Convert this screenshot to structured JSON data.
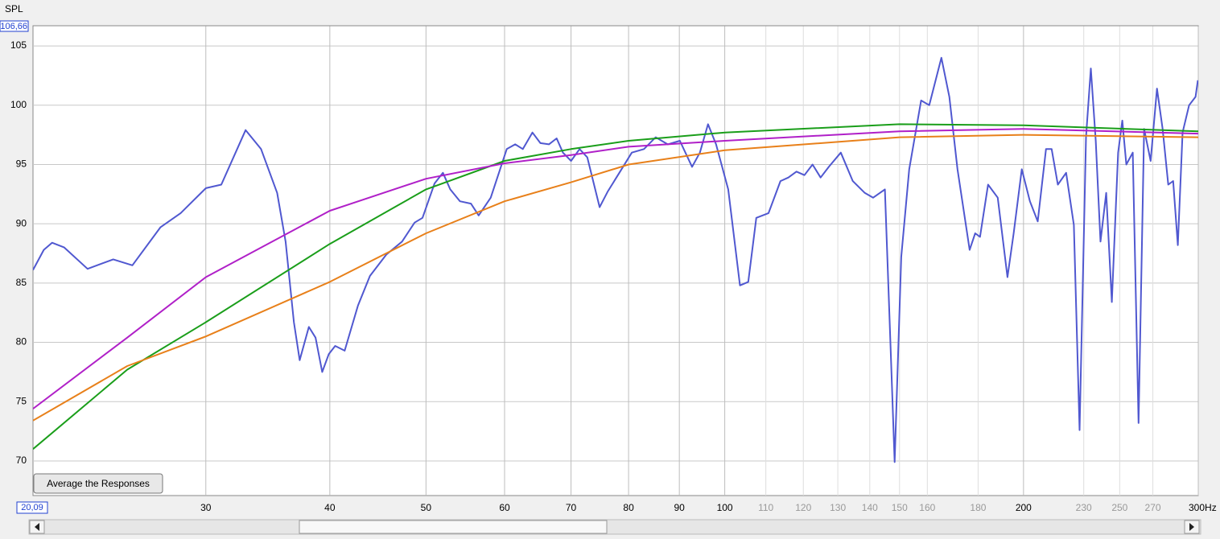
{
  "chart_data": {
    "type": "line",
    "y_label": "SPL",
    "button": "Average the Responses",
    "xscale": "log",
    "xlim": [
      20.09,
      300
    ],
    "xlim_label": "20,09",
    "ylim": [
      67.08,
      106.66
    ],
    "ylim_label": "106,66",
    "yticks": [
      70,
      75,
      80,
      85,
      90,
      95,
      100,
      105
    ],
    "xticks_major": [
      30,
      40,
      50,
      60,
      70,
      80,
      90,
      100,
      200,
      {
        "value": 300,
        "label": "300Hz"
      }
    ],
    "xticks_minor": [
      110,
      120,
      130,
      140,
      150,
      160,
      180,
      230,
      250,
      270
    ],
    "grid": true,
    "series": [
      {
        "color": "#5058d0",
        "x": [
          20.09,
          20.6,
          21.0,
          21.6,
          22.8,
          24.2,
          25.3,
          27.0,
          28.3,
          30.0,
          31.1,
          32.9,
          34.1,
          35.4,
          36.1,
          36.8,
          37.3,
          38.1,
          38.7,
          39.3,
          39.9,
          40.5,
          41.4,
          42.7,
          43.9,
          45.6,
          47.3,
          48.7,
          49.6,
          51.0,
          52.0,
          52.9,
          54.1,
          55.5,
          56.5,
          58.1,
          60.3,
          61.5,
          62.6,
          64.0,
          65.2,
          66.5,
          67.7,
          68.7,
          70.0,
          71.4,
          72.7,
          74.8,
          76.2,
          78.3,
          80.6,
          82.9,
          85.2,
          87.6,
          90.1,
          92.7,
          94.4,
          96.2,
          98.0,
          100.8,
          103.6,
          105.6,
          107.6,
          110.7,
          113.8,
          115.9,
          118.1,
          120.3,
          122.6,
          124.9,
          127.3,
          130.9,
          134.6,
          138.4,
          141.1,
          145.0,
          146.9,
          148.3,
          150.6,
          153.4,
          157.7,
          160.7,
          165.3,
          168.4,
          171.6,
          176.5,
          178.8,
          180.8,
          184.2,
          188.4,
          192.7,
          195.5,
          199.2,
          203.0,
          206.7,
          210.7,
          213.5,
          216.6,
          220.8,
          224.8,
          227.8,
          231.2,
          233.8,
          236.5,
          239.1,
          242.3,
          245.5,
          249.1,
          251.5,
          253.9,
          257.7,
          261.2,
          264.6,
          268.6,
          272.6,
          276.2,
          279.8,
          283.0,
          286.1,
          289.3,
          293.7,
          298.1,
          299.7
        ],
        "values": [
          86.1,
          87.8,
          88.4,
          88.0,
          86.2,
          87.0,
          86.5,
          89.7,
          90.9,
          93.0,
          93.3,
          97.9,
          96.3,
          92.6,
          88.5,
          81.7,
          78.5,
          81.3,
          80.4,
          77.5,
          79.0,
          79.7,
          79.3,
          83.1,
          85.6,
          87.4,
          88.5,
          90.1,
          90.5,
          93.4,
          94.3,
          92.9,
          91.9,
          91.7,
          90.7,
          92.2,
          96.3,
          96.7,
          96.3,
          97.7,
          96.8,
          96.7,
          97.2,
          96.0,
          95.3,
          96.3,
          95.6,
          91.4,
          92.7,
          94.3,
          96.0,
          96.3,
          97.3,
          96.7,
          97.0,
          94.8,
          96.0,
          98.4,
          96.7,
          92.9,
          84.8,
          85.1,
          90.5,
          90.9,
          93.6,
          93.9,
          94.4,
          94.1,
          95.0,
          93.9,
          94.8,
          96.0,
          93.6,
          92.6,
          92.2,
          92.9,
          79.7,
          69.9,
          87.2,
          94.6,
          100.4,
          100.0,
          104.0,
          100.7,
          94.6,
          87.8,
          89.2,
          88.9,
          93.3,
          92.2,
          85.5,
          89.2,
          94.6,
          91.9,
          90.2,
          96.3,
          96.3,
          93.3,
          94.3,
          89.9,
          72.6,
          97.3,
          103.1,
          97.0,
          88.5,
          92.6,
          83.4,
          96.0,
          98.7,
          95.0,
          96.0,
          73.2,
          98.0,
          95.3,
          101.4,
          98.0,
          93.3,
          93.6,
          88.2,
          97.7,
          100.0,
          100.7,
          102.1
        ]
      },
      {
        "color": "#1a9e1a",
        "x": [
          20.09,
          25,
          30,
          40,
          50,
          60,
          70,
          80,
          100,
          150,
          200,
          300
        ],
        "values": [
          71.0,
          77.7,
          81.7,
          88.3,
          92.9,
          95.3,
          96.3,
          97.0,
          97.7,
          98.4,
          98.3,
          97.8
        ]
      },
      {
        "color": "#b020c8",
        "x": [
          20.09,
          25,
          30,
          40,
          50,
          60,
          70,
          80,
          100,
          150,
          200,
          300
        ],
        "values": [
          74.4,
          80.4,
          85.5,
          91.1,
          93.8,
          95.1,
          95.8,
          96.5,
          97.0,
          97.8,
          98.0,
          97.6
        ]
      },
      {
        "color": "#e8801a",
        "x": [
          20.09,
          25,
          30,
          40,
          50,
          60,
          70,
          80,
          100,
          150,
          200,
          300
        ],
        "values": [
          73.4,
          78.0,
          80.5,
          85.1,
          89.2,
          91.9,
          93.5,
          95.0,
          96.2,
          97.3,
          97.5,
          97.3
        ]
      }
    ]
  }
}
